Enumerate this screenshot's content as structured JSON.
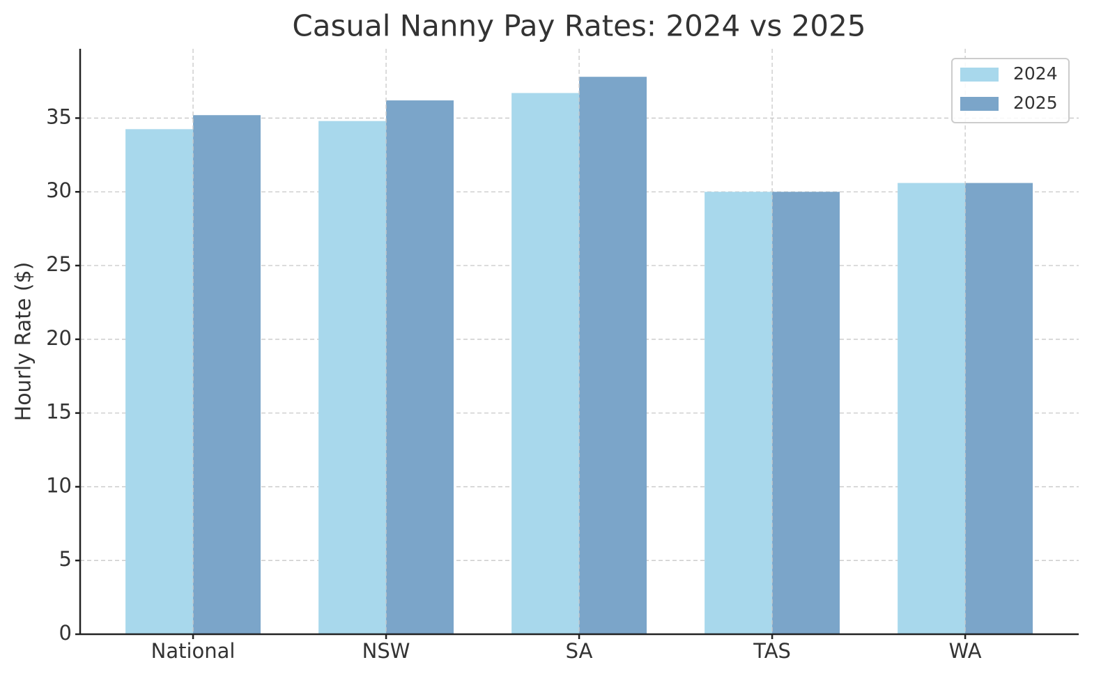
{
  "chart_data": {
    "type": "bar",
    "title": "Casual Nanny Pay Rates: 2024 vs 2025",
    "y_label": "Hourly Rate ($)",
    "categories": [
      "National",
      "NSW",
      "SA",
      "TAS",
      "WA"
    ],
    "series": [
      {
        "name": "2024",
        "color": "#a8d8ec",
        "values": [
          34.25,
          34.8,
          36.7,
          30.0,
          30.6
        ]
      },
      {
        "name": "2025",
        "color": "#7ba5c9",
        "values": [
          35.2,
          36.2,
          37.8,
          30.0,
          30.6
        ]
      }
    ],
    "ylim": [
      0,
      39.7
    ],
    "yticks": [
      0,
      5,
      10,
      15,
      20,
      25,
      30,
      35
    ],
    "grid": true,
    "legend": "upper right"
  }
}
